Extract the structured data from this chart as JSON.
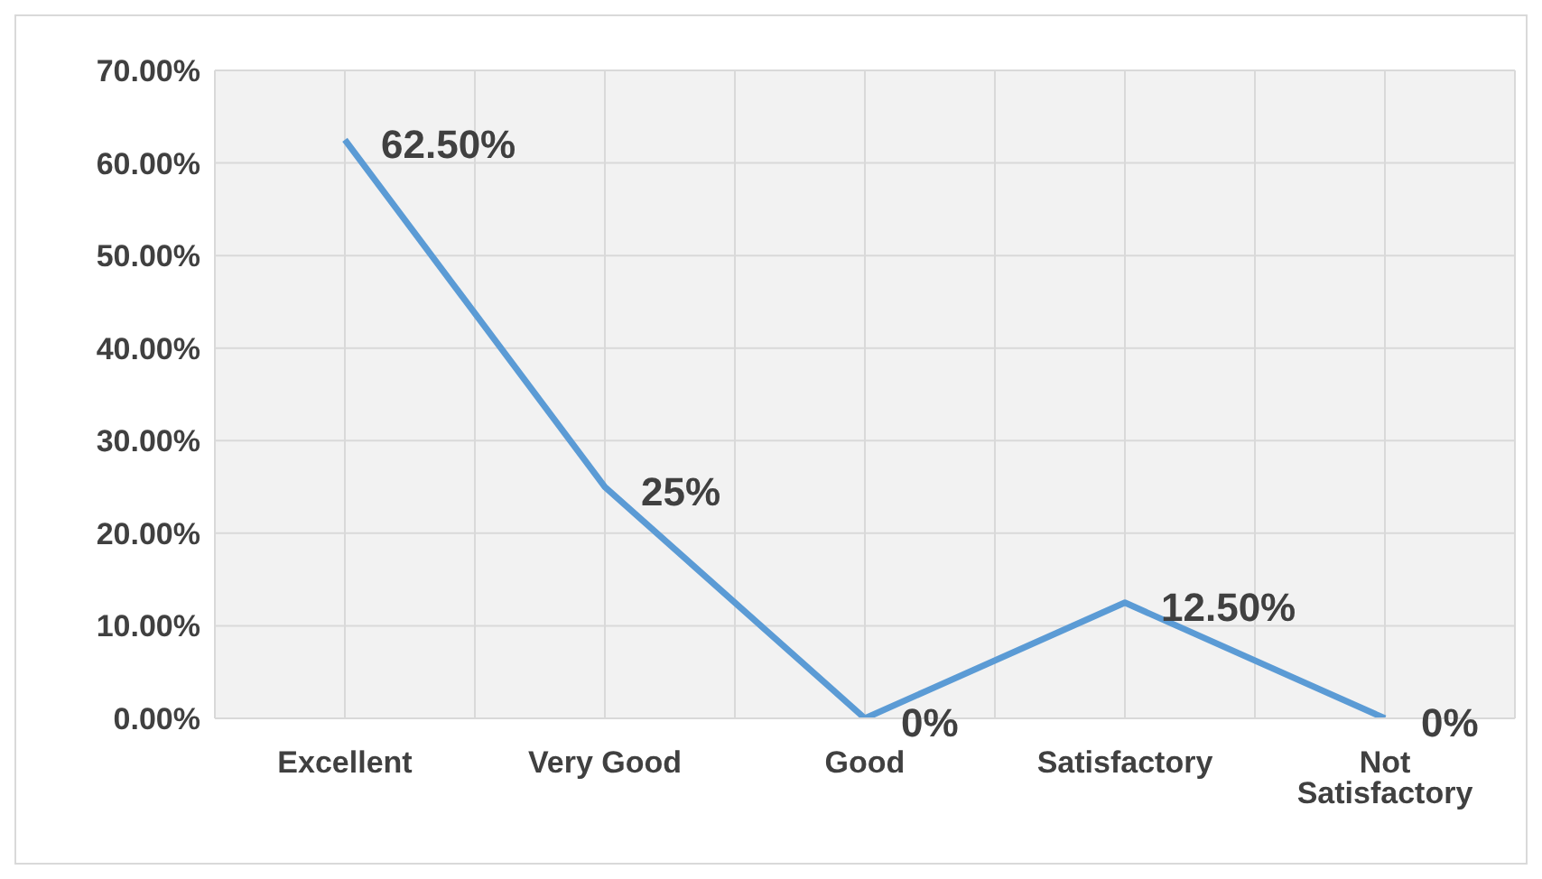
{
  "chart_data": {
    "type": "line",
    "categories": [
      "Excellent",
      "Very Good",
      "Good",
      "Satisfactory",
      "Not Satisfactory"
    ],
    "series": [
      {
        "color": "#5b9bd5",
        "values": [
          62.5,
          25,
          0,
          12.5,
          0
        ],
        "value_labels": [
          "62.50%",
          "25%",
          "0%",
          "12.50%",
          "0%"
        ]
      }
    ],
    "ylim": [
      0,
      70
    ],
    "yticks": [
      {
        "value": 0,
        "label": "0.00%"
      },
      {
        "value": 10,
        "label": "10.00%"
      },
      {
        "value": 20,
        "label": "20.00%"
      },
      {
        "value": 30,
        "label": "30.00%"
      },
      {
        "value": 40,
        "label": "40.00%"
      },
      {
        "value": 50,
        "label": "50.00%"
      },
      {
        "value": 60,
        "label": "60.00%"
      },
      {
        "value": 70,
        "label": "70.00%"
      }
    ],
    "grid": true,
    "marker": "none",
    "line_style": "solid"
  }
}
